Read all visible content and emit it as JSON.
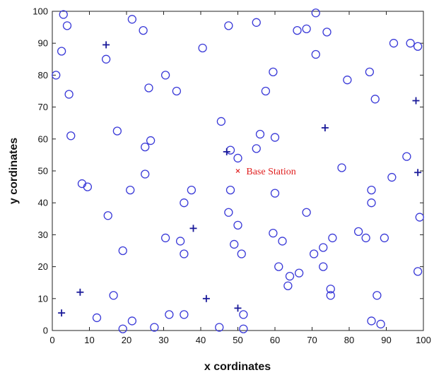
{
  "chart_data": {
    "type": "scatter",
    "title": "",
    "xlabel": "x cordinates",
    "ylabel": "y cordinates",
    "xlim": [
      0,
      100
    ],
    "ylim": [
      0,
      100
    ],
    "xticks": [
      0,
      10,
      20,
      30,
      40,
      50,
      60,
      70,
      80,
      90,
      100
    ],
    "yticks": [
      0,
      10,
      20,
      30,
      40,
      50,
      60,
      70,
      80,
      90,
      100
    ],
    "grid": false,
    "legend": false,
    "colors": {
      "nodes": "#3a3ad8",
      "cluster_heads": "#1a1a9a",
      "base_station": "#e02020",
      "annotation": "#e02020"
    },
    "series": [
      {
        "marker": "o",
        "points": [
          [
            3,
            99
          ],
          [
            4,
            95.5
          ],
          [
            2.5,
            87.5
          ],
          [
            1,
            80
          ],
          [
            4.5,
            74
          ],
          [
            5,
            61
          ],
          [
            8,
            46
          ],
          [
            9.5,
            45
          ],
          [
            15,
            36
          ],
          [
            16.5,
            11
          ],
          [
            12,
            4
          ],
          [
            19,
            25
          ],
          [
            19,
            0.5
          ],
          [
            21.5,
            3
          ],
          [
            21,
            44
          ],
          [
            21.5,
            97.5
          ],
          [
            24.5,
            94
          ],
          [
            26,
            76
          ],
          [
            17.5,
            62.5
          ],
          [
            25,
            57.5
          ],
          [
            26.5,
            59.5
          ],
          [
            25,
            49
          ],
          [
            14.5,
            85
          ],
          [
            30.5,
            80
          ],
          [
            33.5,
            75
          ],
          [
            30.5,
            29
          ],
          [
            31.5,
            5
          ],
          [
            27.5,
            1
          ],
          [
            34.5,
            28
          ],
          [
            35.5,
            24
          ],
          [
            35.5,
            5
          ],
          [
            35.5,
            40
          ],
          [
            37.5,
            44
          ],
          [
            40.5,
            88.5
          ],
          [
            45.5,
            65.5
          ],
          [
            48,
            56.5
          ],
          [
            47.5,
            95.5
          ],
          [
            50,
            54
          ],
          [
            48,
            44
          ],
          [
            47.5,
            37
          ],
          [
            50,
            33
          ],
          [
            49,
            27
          ],
          [
            51,
            24
          ],
          [
            45,
            1
          ],
          [
            51.5,
            5
          ],
          [
            51.5,
            0.5
          ],
          [
            55,
            96.5
          ],
          [
            55,
            57
          ],
          [
            56,
            61.5
          ],
          [
            57.5,
            75
          ],
          [
            59.5,
            81
          ],
          [
            60,
            60.5
          ],
          [
            60,
            43
          ],
          [
            59.5,
            30.5
          ],
          [
            62,
            28
          ],
          [
            61,
            20
          ],
          [
            64,
            17
          ],
          [
            63.5,
            14
          ],
          [
            66.5,
            18
          ],
          [
            66,
            94
          ],
          [
            68.5,
            94.5
          ],
          [
            71,
            99.5
          ],
          [
            71,
            86.5
          ],
          [
            74,
            93.5
          ],
          [
            68.5,
            37
          ],
          [
            70.5,
            24
          ],
          [
            73,
            26
          ],
          [
            75.5,
            29
          ],
          [
            73,
            20
          ],
          [
            75,
            13
          ],
          [
            75,
            11
          ],
          [
            78,
            51
          ],
          [
            79.5,
            78.5
          ],
          [
            85.5,
            81
          ],
          [
            87,
            72.5
          ],
          [
            86,
            44
          ],
          [
            86,
            40
          ],
          [
            82.5,
            31
          ],
          [
            84.5,
            29
          ],
          [
            89.5,
            29
          ],
          [
            87.5,
            11
          ],
          [
            86,
            3
          ],
          [
            88.5,
            2
          ],
          [
            91.5,
            48
          ],
          [
            95.5,
            54.5
          ],
          [
            92,
            90
          ],
          [
            96.5,
            90
          ],
          [
            98.5,
            89
          ],
          [
            99,
            35.5
          ],
          [
            98.5,
            18.5
          ]
        ]
      },
      {
        "marker": "+",
        "points": [
          [
            2.5,
            5.5
          ],
          [
            7.5,
            12
          ],
          [
            14.5,
            89.5
          ],
          [
            38,
            32
          ],
          [
            41.5,
            10
          ],
          [
            47,
            56
          ],
          [
            50,
            7
          ],
          [
            73.5,
            63.5
          ],
          [
            98,
            72
          ],
          [
            98.5,
            49.5
          ]
        ]
      },
      {
        "marker": "x",
        "points": [
          [
            50,
            50
          ]
        ]
      }
    ],
    "annotations": [
      {
        "text": "Base Station",
        "x": 51.5,
        "y": 50
      }
    ]
  }
}
